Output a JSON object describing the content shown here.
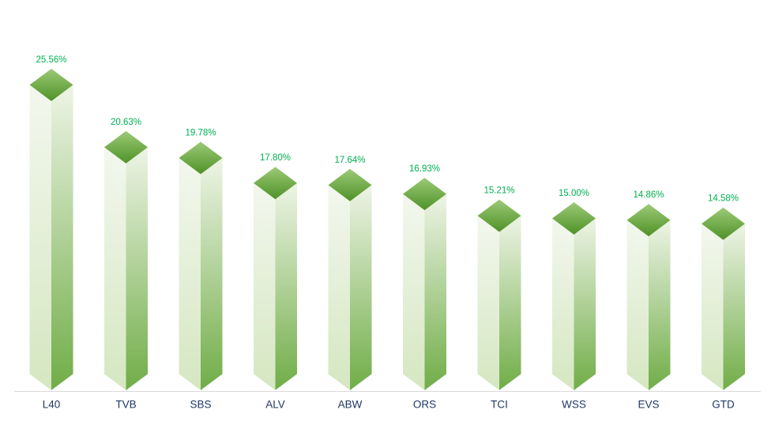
{
  "chart_data": {
    "type": "bar",
    "variant": "3d-box-columns",
    "title": "",
    "xlabel": "",
    "ylabel": "",
    "categories": [
      "L40",
      "TVB",
      "SBS",
      "ALV",
      "ABW",
      "ORS",
      "TCI",
      "WSS",
      "EVS",
      "GTD"
    ],
    "values": [
      25.56,
      20.63,
      19.78,
      17.8,
      17.64,
      16.93,
      15.21,
      15.0,
      14.86,
      14.58
    ],
    "value_labels": [
      "25.56%",
      "20.63%",
      "19.78%",
      "17.80%",
      "17.64%",
      "16.93%",
      "15.21%",
      "15.00%",
      "14.86%",
      "14.58%"
    ],
    "ylim": [
      0,
      26
    ],
    "grid": false,
    "legend": false,
    "colors": {
      "value_label": "#00b050",
      "category_label": "#1f3864",
      "axis_line": "#d9d9d9",
      "cap_top": "#9cca77",
      "cap_bottom": "#4f9227",
      "face_left_top": "#f3f7ee",
      "face_left_bottom": "#d5e7c1",
      "face_right_top": "#eef4e6",
      "face_right_bottom": "#70ad47",
      "background": "#ffffff"
    }
  }
}
